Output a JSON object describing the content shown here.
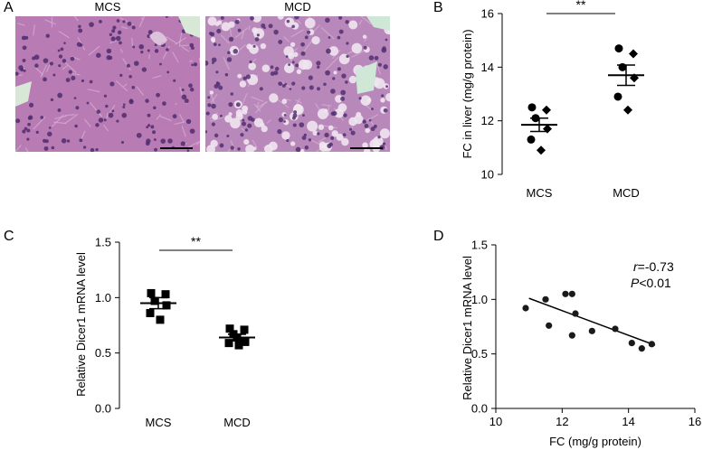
{
  "panels": {
    "A": {
      "letter": "A",
      "images": [
        {
          "label": "MCS",
          "tissue_color": "#b87bb4",
          "nuclei_color": "#4f2d6e",
          "space_color": "#d8e8d6"
        },
        {
          "label": "MCD",
          "tissue_color": "#b988ba",
          "nuclei_color": "#523072",
          "space_color": "#eef0ef"
        }
      ]
    },
    "B": {
      "letter": "B"
    },
    "C": {
      "letter": "C"
    },
    "D": {
      "letter": "D",
      "annotation_r": "=-0.73",
      "annotation_r_var": "r",
      "annotation_p": "<0.01",
      "annotation_p_var": "P"
    }
  },
  "chart_data": [
    {
      "id": "B",
      "type": "scatter",
      "title": "",
      "xlabel": "",
      "ylabel": "FC in liver (mg/g protein)",
      "categories": [
        "MCS",
        "MCD"
      ],
      "ylim": [
        10,
        16
      ],
      "yticks": [
        10,
        12,
        14,
        16
      ],
      "series": [
        {
          "category": "MCS",
          "points": [
            12.5,
            12.4,
            12.1,
            11.7,
            11.3,
            10.9
          ],
          "mean": 11.85,
          "sem": 0.25
        },
        {
          "category": "MCD",
          "points": [
            14.7,
            14.5,
            14.0,
            13.6,
            12.9,
            12.4
          ],
          "mean": 13.7,
          "sem": 0.38
        }
      ],
      "significance": "**",
      "marker_color": "#000000"
    },
    {
      "id": "C",
      "type": "scatter",
      "title": "",
      "xlabel": "",
      "ylabel": "Relative Dicer1 mRNA level",
      "categories": [
        "MCS",
        "MCD"
      ],
      "ylim": [
        0.0,
        1.5
      ],
      "yticks": [
        0.0,
        0.5,
        1.0,
        1.5
      ],
      "ytick_labels": [
        "0.0",
        "0.5",
        "1.0",
        "1.5"
      ],
      "series": [
        {
          "category": "MCS",
          "points": [
            1.04,
            1.03,
            0.97,
            0.93,
            0.86,
            0.8
          ],
          "mean": 0.95,
          "sem": 0.05
        },
        {
          "category": "MCD",
          "points": [
            0.72,
            0.71,
            0.67,
            0.6,
            0.59,
            0.57
          ],
          "mean": 0.64,
          "sem": 0.03
        },
        {
          "category": "MCD",
          "points": [
            0.64
          ],
          "mean": 0.64,
          "sem": 0.03
        }
      ],
      "significance": "**",
      "marker_color": "#000000"
    },
    {
      "id": "D",
      "type": "scatter",
      "title": "",
      "xlabel": "FC (mg/g protein)",
      "ylabel": "Relative Dicer1 mRNA level",
      "xlim": [
        10,
        16
      ],
      "xticks": [
        10,
        12,
        14,
        16
      ],
      "ylim": [
        0.0,
        1.5
      ],
      "yticks": [
        0.0,
        0.5,
        1.0,
        1.5
      ],
      "ytick_labels": [
        "0.0",
        "0.5",
        "1.0",
        "1.5"
      ],
      "points": [
        {
          "x": 10.9,
          "y": 0.92
        },
        {
          "x": 11.5,
          "y": 1.0
        },
        {
          "x": 11.6,
          "y": 0.76
        },
        {
          "x": 12.1,
          "y": 1.05
        },
        {
          "x": 12.3,
          "y": 1.05
        },
        {
          "x": 12.3,
          "y": 0.67
        },
        {
          "x": 12.4,
          "y": 0.87
        },
        {
          "x": 12.9,
          "y": 0.71
        },
        {
          "x": 13.6,
          "y": 0.73
        },
        {
          "x": 14.1,
          "y": 0.6
        },
        {
          "x": 14.4,
          "y": 0.55
        },
        {
          "x": 14.7,
          "y": 0.59
        }
      ],
      "fit_line": {
        "x": [
          11.0,
          14.8
        ],
        "y": [
          1.01,
          0.58
        ]
      },
      "marker_color": "#1a1a1a"
    }
  ]
}
